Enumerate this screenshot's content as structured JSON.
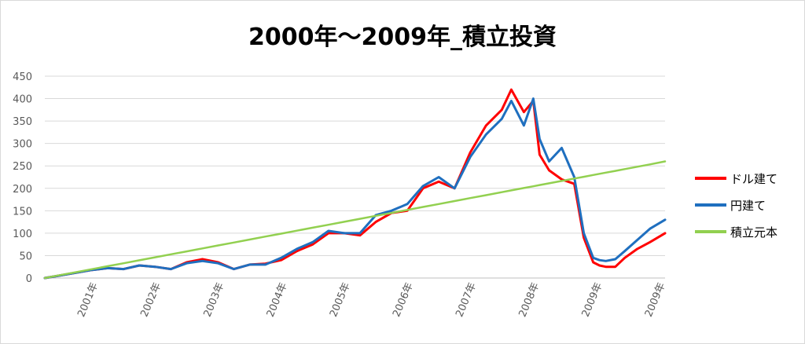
{
  "chart_data": {
    "type": "line",
    "title": "2000年～2009年_積立投資",
    "xlabel": "",
    "ylabel": "",
    "ylim": [
      0,
      450
    ],
    "yticks": [
      0,
      50,
      100,
      150,
      200,
      250,
      300,
      350,
      400,
      450
    ],
    "xticks": [
      "2001年",
      "2002年",
      "2003年",
      "2004年",
      "2005年",
      "2006年",
      "2007年",
      "2008年",
      "2009年",
      "2009年"
    ],
    "x_tick_positions": [
      0.84,
      1.84,
      2.84,
      3.84,
      4.84,
      5.84,
      6.84,
      7.84,
      8.84,
      9.84
    ],
    "xlim": [
      0,
      9.84
    ],
    "grid": true,
    "legend_position": "right",
    "x": [
      0,
      0.25,
      0.5,
      0.75,
      1.0,
      1.25,
      1.5,
      1.75,
      2.0,
      2.25,
      2.5,
      2.75,
      3.0,
      3.25,
      3.5,
      3.75,
      4.0,
      4.25,
      4.5,
      4.75,
      5.0,
      5.25,
      5.5,
      5.75,
      6.0,
      6.25,
      6.5,
      6.75,
      7.0,
      7.25,
      7.4,
      7.6,
      7.75,
      7.85,
      8.0,
      8.2,
      8.4,
      8.55,
      8.7,
      8.8,
      8.9,
      9.05,
      9.2,
      9.4,
      9.6,
      9.84
    ],
    "series": [
      {
        "name": "ドル建て",
        "color": "#ff0000",
        "values": [
          0,
          6,
          12,
          18,
          22,
          20,
          28,
          25,
          20,
          35,
          42,
          35,
          20,
          30,
          32,
          40,
          60,
          75,
          100,
          100,
          95,
          125,
          145,
          150,
          200,
          215,
          200,
          280,
          340,
          375,
          420,
          370,
          395,
          275,
          240,
          220,
          210,
          90,
          35,
          28,
          25,
          25,
          45,
          65,
          80,
          100
        ]
      },
      {
        "name": "円建て",
        "color": "#1f6fbf",
        "values": [
          0,
          6,
          12,
          18,
          22,
          20,
          28,
          25,
          20,
          33,
          38,
          33,
          20,
          30,
          30,
          45,
          65,
          80,
          105,
          100,
          100,
          140,
          150,
          165,
          205,
          225,
          200,
          270,
          320,
          355,
          395,
          340,
          400,
          310,
          260,
          290,
          225,
          100,
          45,
          40,
          38,
          42,
          60,
          85,
          110,
          130
        ]
      },
      {
        "name": "積立元本",
        "color": "#92d050",
        "values": [
          0,
          6.6,
          13.2,
          19.8,
          26.4,
          33.0,
          39.6,
          46.2,
          52.8,
          59.4,
          66.0,
          72.6,
          79.2,
          85.8,
          92.4,
          99.0,
          105.6,
          112.2,
          118.8,
          125.4,
          132.0,
          138.6,
          145.2,
          151.8,
          158.4,
          165.0,
          171.6,
          178.2,
          184.8,
          191.4,
          195.4,
          200.6,
          204.6,
          207.3,
          211.2,
          216.5,
          221.8,
          225.7,
          229.7,
          232.3,
          235.0,
          238.9,
          242.9,
          248.2,
          253.4,
          260
        ]
      }
    ]
  }
}
